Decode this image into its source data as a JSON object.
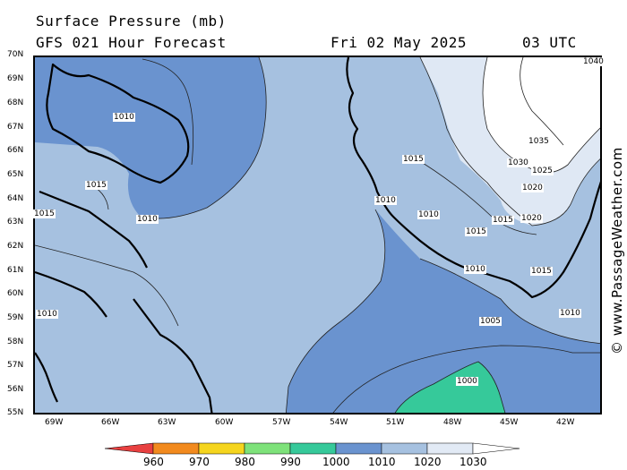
{
  "header": {
    "title": "Surface Pressure (mb)",
    "model": "GFS 021 Hour Forecast",
    "date": "Fri 02 May 2025",
    "time": "03 UTC"
  },
  "credit": "© www.PassageWeather.com",
  "axes": {
    "latitudes": [
      "70N",
      "69N",
      "68N",
      "67N",
      "66N",
      "65N",
      "64N",
      "63N",
      "62N",
      "61N",
      "60N",
      "59N",
      "58N",
      "57N",
      "56N",
      "55N"
    ],
    "longitudes": [
      "69W",
      "66W",
      "63W",
      "60W",
      "57W",
      "54W",
      "51W",
      "48W",
      "45W",
      "42W"
    ]
  },
  "contour_labels": [
    "1040",
    "1035",
    "1030",
    "1025",
    "1020",
    "1020",
    "1015",
    "1015",
    "1015",
    "1015",
    "1015",
    "1015",
    "1010",
    "1010",
    "1010",
    "1010",
    "1010",
    "1010",
    "1005",
    "1000",
    "1010"
  ],
  "colorbar": {
    "ticks": [
      "960",
      "970",
      "980",
      "990",
      "1000",
      "1010",
      "1020",
      "1030"
    ],
    "colors": [
      "#e84040",
      "#f28a1e",
      "#f5d51e",
      "#7ee27a",
      "#36c99a",
      "#6a93cf",
      "#a6c1e0",
      "#e2eaf5"
    ]
  },
  "colors": {
    "band_1000_1010": "#6a93cf",
    "band_1010_1020": "#a6c1e0",
    "band_1020_1030": "#dfe8f4",
    "band_1030_plus": "#ffffff",
    "band_990_1000": "#36c99a",
    "coastline": "#000000"
  }
}
